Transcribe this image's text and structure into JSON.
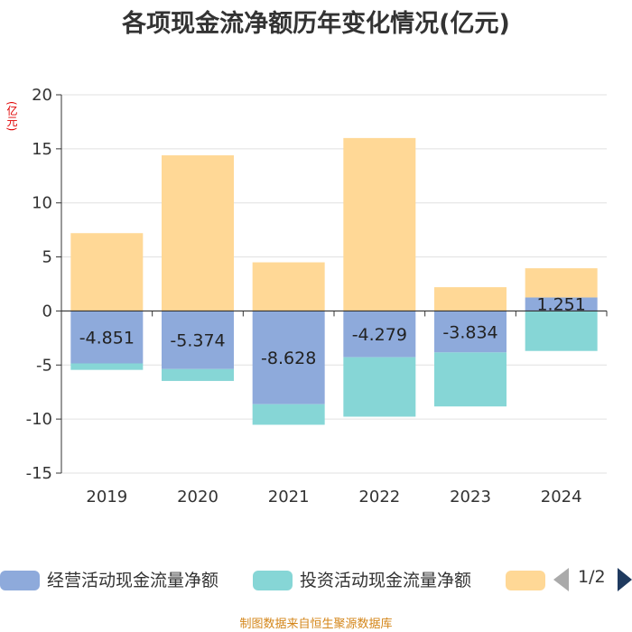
{
  "title": "各项现金流净额历年变化情况(亿元)",
  "unit_label": "(亿元)",
  "source": "制图数据来自恒生聚源数据库",
  "pager": {
    "text": "1/2"
  },
  "colors": {
    "operating": "#8eaadb",
    "investing": "#86d6d6",
    "financing": "#ffd896",
    "axis": "#333333",
    "grid": "#e0e0e0"
  },
  "legend": [
    {
      "label": "经营活动现金流量净额",
      "color": "#8eaadb"
    },
    {
      "label": "投资活动现金流量净额",
      "color": "#86d6d6"
    },
    {
      "label": "",
      "color": "#ffd896"
    }
  ],
  "chart_data": {
    "type": "bar",
    "stacked": true,
    "title": "各项现金流净额历年变化情况(亿元)",
    "ylabel": "(亿元)",
    "ylim": [
      -15,
      20
    ],
    "yticks": [
      20,
      15,
      10,
      5,
      0,
      -5,
      -10,
      -15
    ],
    "categories": [
      "2019",
      "2020",
      "2021",
      "2022",
      "2023",
      "2024"
    ],
    "series": [
      {
        "name": "经营活动现金流量净额",
        "color": "#8eaadb",
        "values": [
          -4.851,
          -5.374,
          -8.628,
          -4.279,
          -3.834,
          1.251
        ],
        "labels": [
          "-4.851",
          "-5.374",
          "-8.628",
          "-4.279",
          "-3.834",
          "1.251"
        ]
      },
      {
        "name": "投资活动现金流量净额",
        "color": "#86d6d6",
        "values": [
          -0.6,
          -1.1,
          -1.9,
          -5.5,
          -5.0,
          -3.7
        ]
      },
      {
        "name": "",
        "color": "#ffd896",
        "values": [
          7.2,
          14.4,
          4.5,
          16.0,
          2.2,
          2.7
        ]
      }
    ]
  }
}
